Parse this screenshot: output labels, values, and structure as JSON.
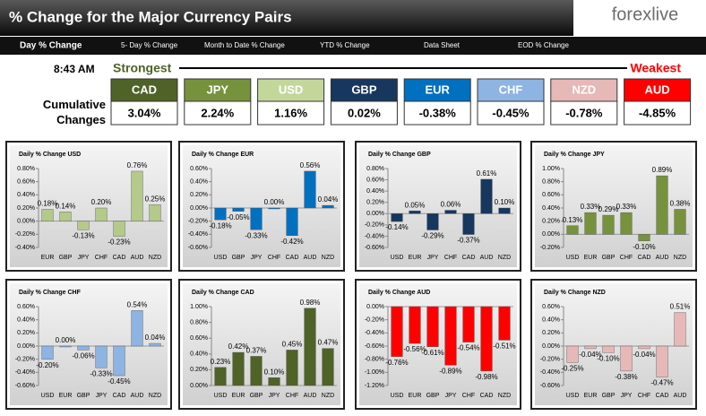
{
  "header": {
    "title": "% Change for the Major Currency Pairs",
    "logo": "forexlive"
  },
  "tabs": [
    "Day % Change",
    "5- Day % Change",
    "Month to Date % Change",
    "YTD % Change",
    "Data Sheet",
    "EOD % Change"
  ],
  "rankings": {
    "time": "8:43 AM",
    "strongest": "Strongest",
    "weakest": "Weakest",
    "label": "Cumulative Changes",
    "items": [
      {
        "currency": "CAD",
        "change": "3.04%",
        "color": "#4f6228"
      },
      {
        "currency": "JPY",
        "change": "2.24%",
        "color": "#76923c"
      },
      {
        "currency": "USD",
        "change": "1.16%",
        "color": "#c4d79b"
      },
      {
        "currency": "GBP",
        "change": "0.02%",
        "color": "#17375e"
      },
      {
        "currency": "EUR",
        "change": "-0.38%",
        "color": "#0070c0"
      },
      {
        "currency": "CHF",
        "change": "-0.45%",
        "color": "#8db4e2"
      },
      {
        "currency": "NZD",
        "change": "-0.78%",
        "color": "#e6b8b7"
      },
      {
        "currency": "AUD",
        "change": "-4.85%",
        "color": "#ff0000"
      }
    ]
  },
  "chart_data": [
    {
      "type": "bar",
      "title": "Daily % Change USD",
      "color": "#b5c98a",
      "categories": [
        "EUR",
        "GBP",
        "JPY",
        "CHF",
        "CAD",
        "AUD",
        "NZD"
      ],
      "values": [
        0.18,
        0.14,
        -0.13,
        0.2,
        -0.23,
        0.76,
        0.25
      ],
      "value_labels": [
        "0.18%",
        "0.14%",
        "-0.13%",
        "0.20%",
        "-0.23%",
        "0.76%",
        "0.25%"
      ],
      "ylim": [
        -0.4,
        0.8
      ],
      "yticks": [
        {
          "value": -0.4,
          "label": "-0.40%"
        },
        {
          "value": -0.2,
          "label": "-0.20%"
        },
        {
          "value": 0,
          "label": "0.00%"
        },
        {
          "value": 0.2,
          "label": "0.20%"
        },
        {
          "value": 0.4,
          "label": "0.40%"
        },
        {
          "value": 0.6,
          "label": "0.60%"
        },
        {
          "value": 0.8,
          "label": "0.80%"
        }
      ]
    },
    {
      "type": "bar",
      "title": "Daily % Change EUR",
      "color": "#0070c0",
      "categories": [
        "USD",
        "GBP",
        "JPY",
        "CHF",
        "CAD",
        "AUD",
        "NZD"
      ],
      "values": [
        -0.18,
        -0.05,
        -0.33,
        0.0,
        -0.42,
        0.56,
        0.04
      ],
      "value_labels": [
        "-0.18%",
        "-0.05%",
        "-0.33%",
        "0.00%",
        "-0.42%",
        "0.56%",
        "0.04%"
      ],
      "ylim": [
        -0.6,
        0.6
      ],
      "yticks": [
        {
          "value": -0.6,
          "label": "-0.60%"
        },
        {
          "value": -0.4,
          "label": "-0.40%"
        },
        {
          "value": -0.2,
          "label": "-0.20%"
        },
        {
          "value": 0,
          "label": "0.00%"
        },
        {
          "value": 0.2,
          "label": "0.20%"
        },
        {
          "value": 0.4,
          "label": "0.40%"
        },
        {
          "value": 0.6,
          "label": "0.60%"
        }
      ]
    },
    {
      "type": "bar",
      "title": "Daily % Change GBP",
      "color": "#17375e",
      "categories": [
        "USD",
        "EUR",
        "JPY",
        "CHF",
        "CAD",
        "AUD",
        "NZD"
      ],
      "values": [
        -0.14,
        0.05,
        -0.29,
        0.06,
        -0.37,
        0.61,
        0.1
      ],
      "value_labels": [
        "-0.14%",
        "0.05%",
        "-0.29%",
        "0.06%",
        "-0.37%",
        "0.61%",
        "0.10%"
      ],
      "ylim": [
        -0.6,
        0.8
      ],
      "yticks": [
        {
          "value": -0.6,
          "label": "-0.60%"
        },
        {
          "value": -0.4,
          "label": "-0.40%"
        },
        {
          "value": -0.2,
          "label": "-0.20%"
        },
        {
          "value": 0,
          "label": "0.00%"
        },
        {
          "value": 0.2,
          "label": "0.20%"
        },
        {
          "value": 0.4,
          "label": "0.40%"
        },
        {
          "value": 0.6,
          "label": "0.60%"
        },
        {
          "value": 0.8,
          "label": "0.80%"
        }
      ]
    },
    {
      "type": "bar",
      "title": "Daily % Change JPY",
      "color": "#76923c",
      "categories": [
        "USD",
        "EUR",
        "GBP",
        "CHF",
        "CAD",
        "AUD",
        "NZD"
      ],
      "values": [
        0.13,
        0.33,
        0.29,
        0.33,
        -0.1,
        0.89,
        0.38
      ],
      "value_labels": [
        "0.13%",
        "0.33%",
        "0.29%",
        "0.33%",
        "-0.10%",
        "0.89%",
        "0.38%"
      ],
      "ylim": [
        -0.2,
        1.0
      ],
      "yticks": [
        {
          "value": -0.2,
          "label": "-0.20%"
        },
        {
          "value": 0,
          "label": "0.00%"
        },
        {
          "value": 0.2,
          "label": "0.20%"
        },
        {
          "value": 0.4,
          "label": "0.40%"
        },
        {
          "value": 0.6,
          "label": "0.60%"
        },
        {
          "value": 0.8,
          "label": "0.80%"
        },
        {
          "value": 1.0,
          "label": "1.00%"
        }
      ]
    },
    {
      "type": "bar",
      "title": "Daily % Change CHF",
      "color": "#8db4e2",
      "categories": [
        "USD",
        "EUR",
        "GBP",
        "JPY",
        "CAD",
        "AUD",
        "NZD"
      ],
      "values": [
        -0.2,
        0.0,
        -0.06,
        -0.33,
        -0.45,
        0.54,
        0.04
      ],
      "value_labels": [
        "-0.20%",
        "0.00%",
        "-0.06%",
        "-0.33%",
        "-0.45%",
        "0.54%",
        "0.04%"
      ],
      "ylim": [
        -0.6,
        0.6
      ],
      "yticks": [
        {
          "value": -0.6,
          "label": "-0.60%"
        },
        {
          "value": -0.4,
          "label": "-0.40%"
        },
        {
          "value": -0.2,
          "label": "-0.20%"
        },
        {
          "value": 0,
          "label": "0.00%"
        },
        {
          "value": 0.2,
          "label": "0.20%"
        },
        {
          "value": 0.4,
          "label": "0.40%"
        },
        {
          "value": 0.6,
          "label": "0.60%"
        }
      ]
    },
    {
      "type": "bar",
      "title": "Daily % Change CAD",
      "color": "#4f6228",
      "categories": [
        "USD",
        "EUR",
        "GBP",
        "JPY",
        "CHF",
        "AUD",
        "NZD"
      ],
      "values": [
        0.23,
        0.42,
        0.37,
        0.1,
        0.45,
        0.98,
        0.47
      ],
      "value_labels": [
        "0.23%",
        "0.42%",
        "0.37%",
        "0.10%",
        "0.45%",
        "0.98%",
        "0.47%"
      ],
      "ylim": [
        0,
        1.0
      ],
      "yticks": [
        {
          "value": 0,
          "label": "0.00%"
        },
        {
          "value": 0.2,
          "label": "0.20%"
        },
        {
          "value": 0.4,
          "label": "0.40%"
        },
        {
          "value": 0.6,
          "label": "0.60%"
        },
        {
          "value": 0.8,
          "label": "0.80%"
        },
        {
          "value": 1.0,
          "label": "1.00%"
        }
      ]
    },
    {
      "type": "bar",
      "title": "Daily % Change AUD",
      "color": "#ff0000",
      "categories": [
        "USD",
        "EUR",
        "GBP",
        "JPY",
        "CHF",
        "CAD",
        "NZD"
      ],
      "values": [
        -0.76,
        -0.56,
        -0.61,
        -0.89,
        -0.54,
        -0.98,
        -0.51
      ],
      "value_labels": [
        "-0.76%",
        "-0.56%",
        "-0.61%",
        "-0.89%",
        "-0.54%",
        "-0.98%",
        "-0.51%"
      ],
      "ylim": [
        -1.2,
        0
      ],
      "yticks": [
        {
          "value": -1.2,
          "label": "-1.20%"
        },
        {
          "value": -1.0,
          "label": "-1.00%"
        },
        {
          "value": -0.8,
          "label": "-0.80%"
        },
        {
          "value": -0.6,
          "label": "-0.60%"
        },
        {
          "value": -0.4,
          "label": "-0.40%"
        },
        {
          "value": -0.2,
          "label": "-0.20%"
        },
        {
          "value": 0,
          "label": "0.00%"
        }
      ]
    },
    {
      "type": "bar",
      "title": "Daily % Change NZD",
      "color": "#e6b8b7",
      "categories": [
        "USD",
        "EUR",
        "GBP",
        "JPY",
        "CHF",
        "CAD",
        "AUD"
      ],
      "values": [
        -0.25,
        -0.04,
        -0.1,
        -0.38,
        -0.04,
        -0.47,
        0.51
      ],
      "value_labels": [
        "-0.25%",
        "-0.04%",
        "-0.10%",
        "-0.38%",
        "-0.04%",
        "-0.47%",
        "0.51%"
      ],
      "ylim": [
        -0.6,
        0.6
      ],
      "yticks": [
        {
          "value": -0.6,
          "label": "-0.60%"
        },
        {
          "value": -0.4,
          "label": "-0.40%"
        },
        {
          "value": -0.2,
          "label": "-0.20%"
        },
        {
          "value": 0,
          "label": "0.00%"
        },
        {
          "value": 0.2,
          "label": "0.20%"
        },
        {
          "value": 0.4,
          "label": "0.40%"
        },
        {
          "value": 0.6,
          "label": "0.60%"
        }
      ]
    }
  ]
}
